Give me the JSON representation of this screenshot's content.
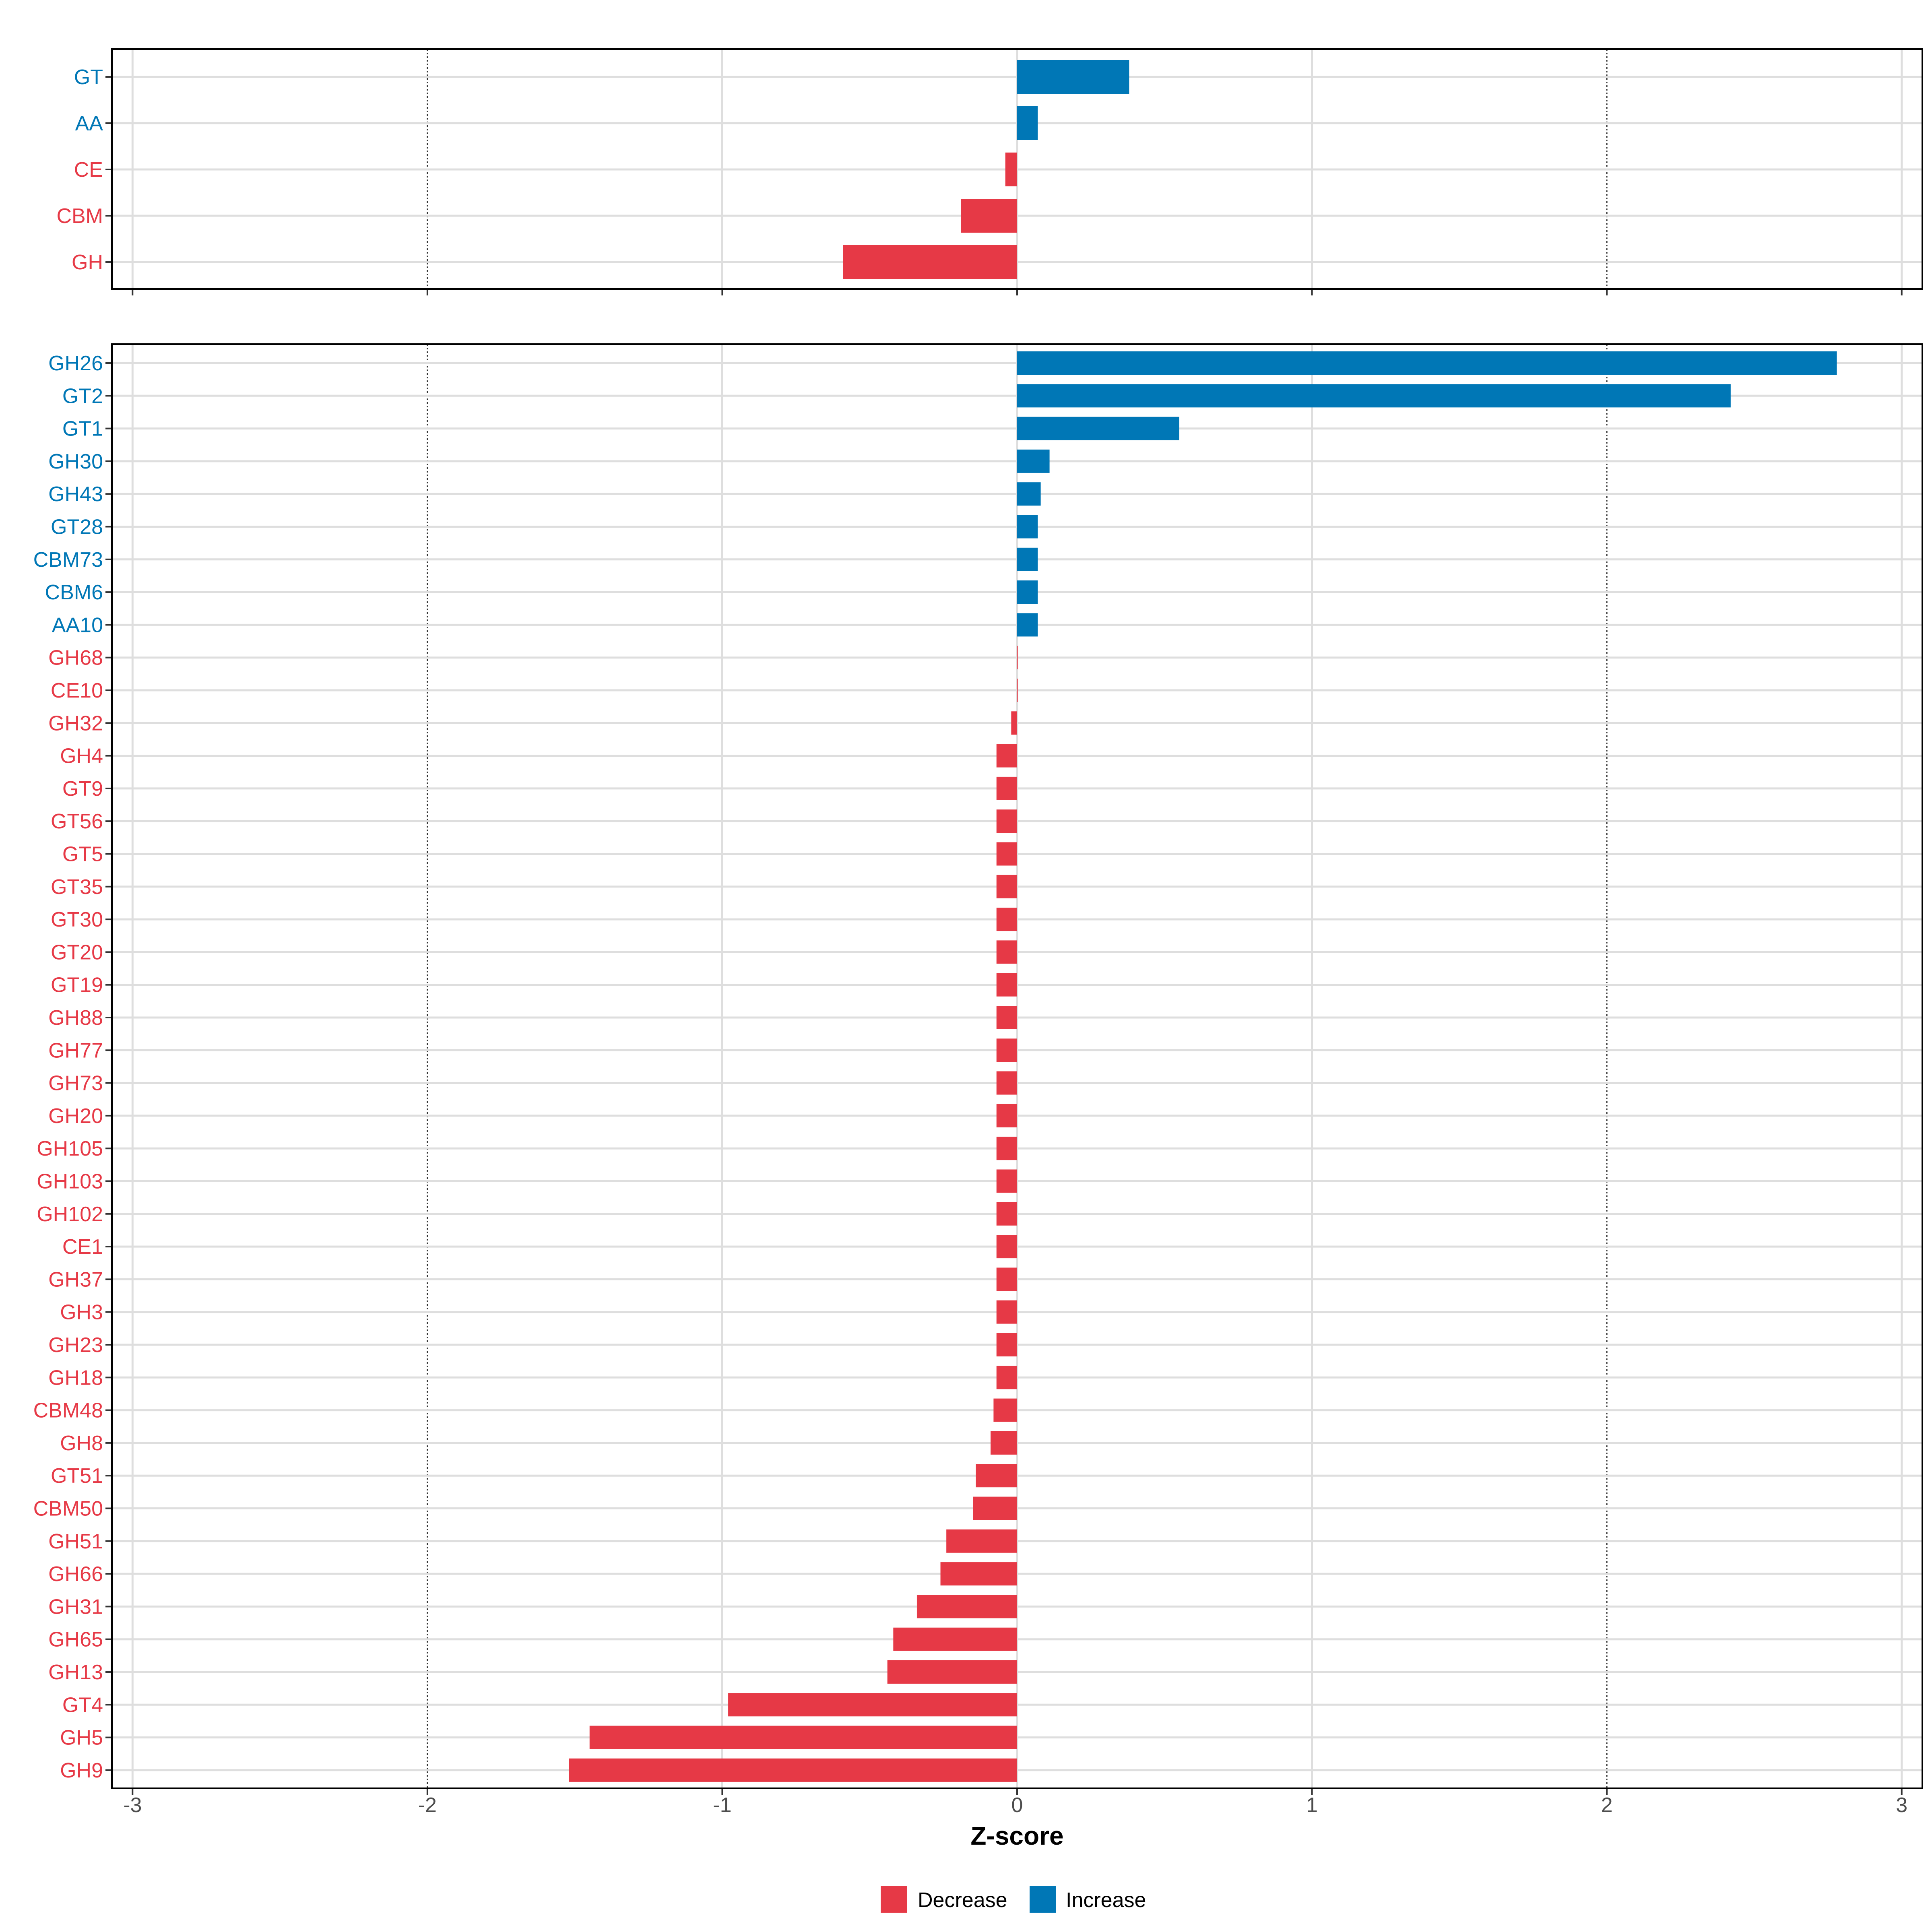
{
  "chart_data": {
    "type": "bar",
    "orientation": "horizontal",
    "xlabel": "Z-score",
    "xlim": [
      -3.07,
      3.07
    ],
    "xticks": [
      -3,
      -2,
      -1,
      0,
      1,
      2,
      3
    ],
    "xtick_labels": [
      "-3",
      "-2",
      "-1",
      "0",
      "1",
      "2",
      "3"
    ],
    "threshold_lines": [
      -2,
      2
    ],
    "grid": true,
    "colors": {
      "Decrease": "#E63946",
      "Increase": "#0077B6"
    },
    "panels": [
      {
        "name": "classes",
        "categories": [
          "GT",
          "AA",
          "CE",
          "CBM",
          "GH"
        ],
        "values": [
          0.38,
          0.07,
          -0.04,
          -0.19,
          -0.59
        ],
        "groups": [
          "Increase",
          "Increase",
          "Decrease",
          "Decrease",
          "Decrease"
        ]
      },
      {
        "name": "families",
        "categories": [
          "GH26",
          "GT2",
          "GT1",
          "GH30",
          "GH43",
          "GT28",
          "CBM73",
          "CBM6",
          "AA10",
          "GH68",
          "CE10",
          "GH32",
          "GH4",
          "GT9",
          "GT56",
          "GT5",
          "GT35",
          "GT30",
          "GT20",
          "GT19",
          "GH88",
          "GH77",
          "GH73",
          "GH20",
          "GH105",
          "GH103",
          "GH102",
          "CE1",
          "GH37",
          "GH3",
          "GH23",
          "GH18",
          "CBM48",
          "GH8",
          "GT51",
          "CBM50",
          "GH51",
          "GH66",
          "GH31",
          "GH65",
          "GH13",
          "GT4",
          "GH5",
          "GH9"
        ],
        "values": [
          2.78,
          2.42,
          0.55,
          0.11,
          0.08,
          0.07,
          0.07,
          0.07,
          0.07,
          0.0,
          0.0,
          -0.02,
          -0.07,
          -0.07,
          -0.07,
          -0.07,
          -0.07,
          -0.07,
          -0.07,
          -0.07,
          -0.07,
          -0.07,
          -0.07,
          -0.07,
          -0.07,
          -0.07,
          -0.07,
          -0.07,
          -0.07,
          -0.07,
          -0.07,
          -0.07,
          -0.08,
          -0.09,
          -0.14,
          -0.15,
          -0.24,
          -0.26,
          -0.34,
          -0.42,
          -0.44,
          -0.98,
          -1.45,
          -1.52
        ],
        "groups": [
          "Increase",
          "Increase",
          "Increase",
          "Increase",
          "Increase",
          "Increase",
          "Increase",
          "Increase",
          "Increase",
          "Decrease",
          "Decrease",
          "Decrease",
          "Decrease",
          "Decrease",
          "Decrease",
          "Decrease",
          "Decrease",
          "Decrease",
          "Decrease",
          "Decrease",
          "Decrease",
          "Decrease",
          "Decrease",
          "Decrease",
          "Decrease",
          "Decrease",
          "Decrease",
          "Decrease",
          "Decrease",
          "Decrease",
          "Decrease",
          "Decrease",
          "Decrease",
          "Decrease",
          "Decrease",
          "Decrease",
          "Decrease",
          "Decrease",
          "Decrease",
          "Decrease",
          "Decrease",
          "Decrease",
          "Decrease",
          "Decrease"
        ]
      }
    ],
    "legend": {
      "position": "bottom",
      "items": [
        {
          "label": "Decrease",
          "color": "#E63946"
        },
        {
          "label": "Increase",
          "color": "#0077B6"
        }
      ]
    }
  }
}
